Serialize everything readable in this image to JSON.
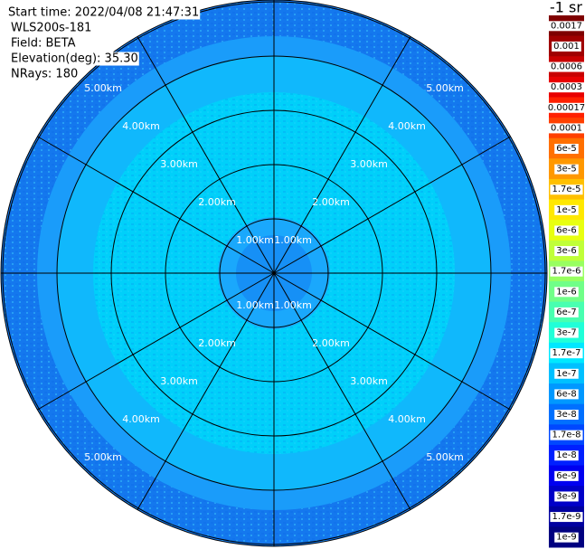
{
  "chart_data": {
    "type": "ppi",
    "info": [
      "Start time: 2022/04/08 21:47:31",
      "WLS200s-181",
      "Field: BETA",
      "Elevation(deg): 35.30",
      "NRays: 180"
    ],
    "range_rings": [
      "1.00km",
      "2.00km",
      "3.00km",
      "4.00km",
      "5.00km"
    ],
    "colorbar": {
      "title": "-1 sr",
      "labels": [
        "0.0017",
        "0.001",
        "0.0006",
        "0.0003",
        "0.00017",
        "0.0001",
        "6e-5",
        "3e-5",
        "1.7e-5",
        "1e-5",
        "6e-6",
        "3e-6",
        "1.7e-6",
        "1e-6",
        "6e-7",
        "3e-7",
        "1.7e-7",
        "1e-7",
        "6e-8",
        "3e-8",
        "1.7e-8",
        "1e-8",
        "6e-9",
        "3e-9",
        "1.7e-9",
        "1e-9"
      ],
      "colors": [
        "#7f0000",
        "#a00000",
        "#c80000",
        "#e80000",
        "#ff2000",
        "#ff4000",
        "#ff7000",
        "#ff9800",
        "#ffc000",
        "#ffe800",
        "#e8ff10",
        "#c0ff38",
        "#98ff60",
        "#70ff88",
        "#48ffb0",
        "#20ffd8",
        "#00e8ff",
        "#00c0ff",
        "#0098ff",
        "#0070ff",
        "#0048ff",
        "#0020ff",
        "#0000f0",
        "#0000c8",
        "#0000a0",
        "#000080"
      ]
    }
  }
}
